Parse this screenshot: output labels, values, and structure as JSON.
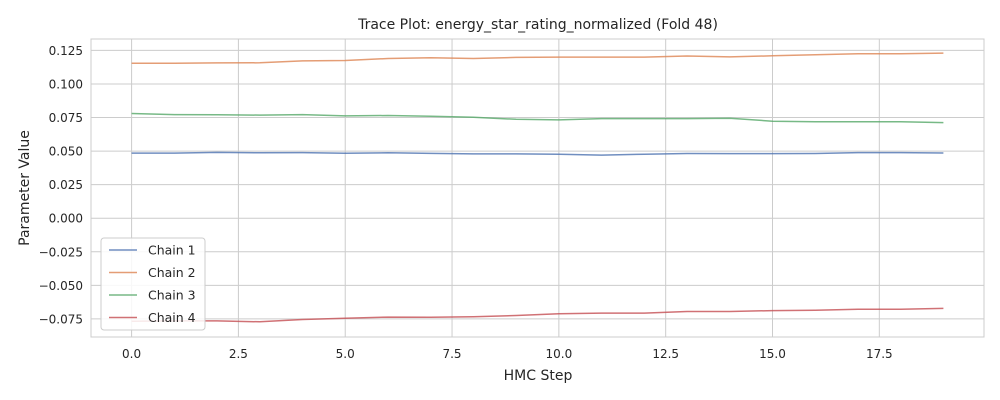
{
  "chart_data": {
    "type": "line",
    "title": "Trace Plot: energy_star_rating_normalized (Fold 48)",
    "xlabel": "HMC Step",
    "ylabel": "Parameter Value",
    "xlim": [
      -0.95,
      19.95
    ],
    "ylim": [
      -0.0885,
      0.1335
    ],
    "xticks": [
      0.0,
      2.5,
      5.0,
      7.5,
      10.0,
      12.5,
      15.0,
      17.5
    ],
    "xtick_labels": [
      "0.0",
      "2.5",
      "5.0",
      "7.5",
      "10.0",
      "12.5",
      "15.0",
      "17.5"
    ],
    "yticks": [
      -0.075,
      -0.05,
      -0.025,
      0.0,
      0.025,
      0.05,
      0.075,
      0.1,
      0.125
    ],
    "ytick_labels": [
      "−0.075",
      "−0.050",
      "−0.025",
      "0.000",
      "0.025",
      "0.050",
      "0.075",
      "0.100",
      "0.125"
    ],
    "grid": true,
    "legend_position": "lower-left",
    "x": [
      0,
      1,
      2,
      3,
      4,
      5,
      6,
      7,
      8,
      9,
      10,
      11,
      12,
      13,
      14,
      15,
      16,
      17,
      18,
      19
    ],
    "series": [
      {
        "name": "Chain 1",
        "color": "#4c72b0",
        "values": [
          0.0485,
          0.0485,
          0.049,
          0.0487,
          0.0489,
          0.0484,
          0.0487,
          0.0483,
          0.0479,
          0.0479,
          0.0476,
          0.047,
          0.0477,
          0.0482,
          0.0481,
          0.0481,
          0.0482,
          0.0489,
          0.0489,
          0.0486
        ]
      },
      {
        "name": "Chain 2",
        "color": "#dd8452",
        "values": [
          0.1155,
          0.1155,
          0.1157,
          0.1158,
          0.1172,
          0.1175,
          0.119,
          0.1195,
          0.119,
          0.1198,
          0.12,
          0.12,
          0.12,
          0.1208,
          0.1202,
          0.121,
          0.1218,
          0.1225,
          0.1225,
          0.123
        ]
      },
      {
        "name": "Chain 3",
        "color": "#55a868",
        "values": [
          0.078,
          0.0772,
          0.077,
          0.0768,
          0.0772,
          0.0762,
          0.0765,
          0.076,
          0.0752,
          0.0737,
          0.0732,
          0.0742,
          0.0742,
          0.0742,
          0.0745,
          0.0723,
          0.0718,
          0.0718,
          0.0718,
          0.0712
        ]
      },
      {
        "name": "Chain 4",
        "color": "#c44e52",
        "values": [
          -0.0768,
          -0.0765,
          -0.0765,
          -0.0772,
          -0.0755,
          -0.0745,
          -0.0737,
          -0.0738,
          -0.0734,
          -0.0725,
          -0.0712,
          -0.0707,
          -0.0707,
          -0.0695,
          -0.0695,
          -0.0688,
          -0.0686,
          -0.0678,
          -0.0678,
          -0.0672
        ]
      }
    ]
  }
}
